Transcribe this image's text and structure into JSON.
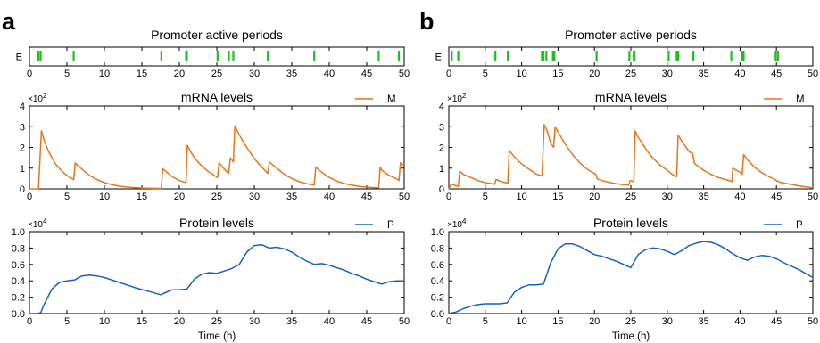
{
  "panels": [
    {
      "letter": "a"
    },
    {
      "letter": "b"
    }
  ],
  "chart_data": [
    {
      "panel": "a",
      "type": "line",
      "x_axis": {
        "label": "Time (h)",
        "lim": [
          0,
          50
        ],
        "ticks": [
          "0",
          "5",
          "10",
          "15",
          "20",
          "25",
          "30",
          "35",
          "40",
          "45",
          "50"
        ]
      },
      "subplots": [
        {
          "kind": "events",
          "title": "Promoter active periods",
          "ylabel": "E",
          "color": "#1fbf1f",
          "events": [
            1.2,
            1.5,
            5.9,
            17.6,
            20.9,
            21.0,
            25.1,
            26.6,
            27.2,
            31.8,
            38.0,
            46.6,
            49.3
          ]
        },
        {
          "kind": "line",
          "title": "mRNA levels",
          "series_label": "M",
          "color": "#e8751a",
          "ylim": [
            0,
            4
          ],
          "yticks": [
            "0",
            "1",
            "2",
            "3",
            "4"
          ],
          "scale_base": "×10",
          "scale_exp": "2",
          "x": [
            0,
            1.2,
            1.6,
            2,
            2.5,
            3,
            3.5,
            4,
            4.5,
            5,
            5.5,
            5.9,
            6.1,
            7,
            8,
            9,
            10,
            11,
            12,
            13,
            14,
            15,
            16,
            17,
            17.5,
            17.6,
            17.8,
            18,
            19,
            20,
            20.9,
            21.05,
            21.5,
            22,
            23,
            24,
            25.1,
            25.3,
            26,
            26.6,
            26.8,
            27.2,
            27.4,
            28,
            29,
            30,
            31,
            31.8,
            32,
            33,
            34,
            35,
            36,
            37,
            38,
            38.2,
            39,
            40,
            41,
            42,
            43,
            44,
            45,
            46,
            46.6,
            46.8,
            47,
            48,
            49,
            49.3,
            49.5,
            50
          ],
          "values": [
            0,
            0,
            2.8,
            2.3,
            1.85,
            1.5,
            1.2,
            0.98,
            0.8,
            0.65,
            0.53,
            0.45,
            1.25,
            0.95,
            0.65,
            0.45,
            0.3,
            0.2,
            0.13,
            0.09,
            0.06,
            0.04,
            0.03,
            0.02,
            0.02,
            0.02,
            0.98,
            0.9,
            0.6,
            0.4,
            0.3,
            2.1,
            1.8,
            1.5,
            1.1,
            0.8,
            0.55,
            1.25,
            0.95,
            0.75,
            1.5,
            1.3,
            3.05,
            2.6,
            2.0,
            1.45,
            1.05,
            0.75,
            1.3,
            1.0,
            0.7,
            0.5,
            0.35,
            0.25,
            0.18,
            1.05,
            0.8,
            0.55,
            0.38,
            0.26,
            0.18,
            0.12,
            0.08,
            0.06,
            0.05,
            1.05,
            0.9,
            0.65,
            0.48,
            0.4,
            1.25,
            1.1
          ]
        },
        {
          "kind": "line",
          "title": "Protein levels",
          "series_label": "P",
          "color": "#1860c4",
          "ylim": [
            0,
            1.0
          ],
          "yticks": [
            "0.0",
            "0.2",
            "0.4",
            "0.6",
            "0.8",
            "1.0"
          ],
          "scale_base": "×10",
          "scale_exp": "4",
          "x": [
            0,
            1,
            1.5,
            2,
            3,
            4,
            5,
            6,
            7,
            8,
            9,
            10,
            12,
            14,
            16,
            17.5,
            18,
            19,
            20,
            21,
            22,
            23,
            24,
            25,
            26,
            27,
            28,
            29,
            30,
            31,
            32,
            33,
            34,
            35,
            36,
            37,
            38,
            39,
            40,
            41,
            42,
            43,
            44,
            45,
            46,
            47,
            48,
            49,
            50
          ],
          "values": [
            0,
            0,
            0.01,
            0.12,
            0.3,
            0.38,
            0.4,
            0.41,
            0.46,
            0.47,
            0.46,
            0.44,
            0.38,
            0.32,
            0.27,
            0.23,
            0.25,
            0.29,
            0.29,
            0.3,
            0.42,
            0.48,
            0.5,
            0.49,
            0.52,
            0.55,
            0.6,
            0.75,
            0.83,
            0.84,
            0.8,
            0.81,
            0.79,
            0.75,
            0.69,
            0.64,
            0.6,
            0.61,
            0.59,
            0.56,
            0.53,
            0.49,
            0.46,
            0.42,
            0.39,
            0.36,
            0.39,
            0.4,
            0.4
          ]
        }
      ]
    },
    {
      "panel": "b",
      "type": "line",
      "x_axis": {
        "label": "Time (h)",
        "lim": [
          0,
          50
        ],
        "ticks": [
          "0",
          "5",
          "10",
          "15",
          "20",
          "25",
          "30",
          "35",
          "40",
          "45",
          "50"
        ]
      },
      "subplots": [
        {
          "kind": "events",
          "title": "Promoter active periods",
          "ylabel": "E",
          "color": "#1fbf1f",
          "events": [
            0.4,
            1.3,
            6.4,
            8.1,
            12.8,
            13.0,
            13.4,
            14.3,
            14.5,
            20.3,
            24.8,
            25.4,
            25.5,
            30.2,
            31.3,
            31.5,
            33.6,
            38.8,
            40.3,
            40.5,
            44.9,
            45.2
          ]
        },
        {
          "kind": "line",
          "title": "mRNA levels",
          "series_label": "M",
          "color": "#e8751a",
          "ylim": [
            0,
            4
          ],
          "yticks": [
            "0",
            "1",
            "2",
            "3",
            "4"
          ],
          "scale_base": "×10",
          "scale_exp": "2",
          "x": [
            0,
            0.3,
            0.5,
            1,
            1.3,
            1.5,
            2,
            3,
            4,
            5,
            6,
            6.3,
            6.5,
            7,
            7.8,
            8.1,
            8.3,
            9,
            10,
            11,
            12,
            12.8,
            13.1,
            13.5,
            14,
            14.4,
            14.6,
            15,
            16,
            17,
            18,
            19,
            20,
            20.2,
            20.4,
            21,
            22,
            23,
            24,
            24.7,
            24.9,
            25.4,
            25.6,
            26,
            27,
            28,
            29,
            30,
            30.2,
            30.4,
            31,
            31.3,
            31.5,
            32,
            33,
            33.5,
            33.7,
            34,
            35,
            36,
            37,
            38,
            38.7,
            38.9,
            39,
            40,
            40.3,
            40.5,
            41,
            42,
            43,
            44,
            44.8,
            45,
            45.2,
            45.5,
            46,
            47,
            48,
            49,
            50
          ],
          "values": [
            0,
            0.2,
            0.2,
            0.15,
            0.12,
            0.85,
            0.7,
            0.55,
            0.4,
            0.3,
            0.25,
            0.22,
            0.45,
            0.38,
            0.3,
            0.28,
            1.85,
            1.55,
            1.2,
            0.95,
            0.72,
            0.62,
            3.1,
            2.8,
            2.2,
            2.0,
            3.0,
            2.75,
            2.15,
            1.65,
            1.25,
            0.95,
            0.75,
            0.7,
            0.48,
            0.4,
            0.32,
            0.25,
            0.2,
            0.18,
            0.4,
            0.35,
            2.8,
            2.5,
            1.95,
            1.5,
            1.15,
            0.9,
            0.85,
            0.78,
            0.62,
            0.6,
            2.6,
            2.3,
            1.8,
            1.7,
            1.25,
            1.15,
            0.9,
            0.7,
            0.55,
            0.45,
            0.38,
            0.35,
            1.0,
            0.8,
            0.7,
            1.65,
            1.4,
            1.05,
            0.78,
            0.58,
            0.45,
            0.4,
            0.36,
            0.32,
            0.28,
            0.22,
            0.15,
            0.1,
            0.05
          ]
        },
        {
          "kind": "line",
          "title": "Protein levels",
          "series_label": "P",
          "color": "#1860c4",
          "ylim": [
            0,
            1.0
          ],
          "yticks": [
            "0.0",
            "0.2",
            "0.4",
            "0.6",
            "0.8",
            "1.0"
          ],
          "scale_base": "×10",
          "scale_exp": "4",
          "x": [
            0,
            1,
            2,
            3,
            4,
            5,
            6,
            7,
            8,
            9,
            10,
            11,
            12,
            13,
            14,
            15,
            16,
            17,
            18,
            19,
            20,
            21,
            22,
            23,
            24,
            25,
            26,
            27,
            28,
            29,
            30,
            31,
            32,
            33,
            34,
            35,
            36,
            37,
            38,
            39,
            40,
            41,
            42,
            43,
            44,
            45,
            46,
            47,
            48,
            49,
            50
          ],
          "values": [
            0,
            0.02,
            0.06,
            0.09,
            0.11,
            0.12,
            0.12,
            0.12,
            0.13,
            0.26,
            0.32,
            0.35,
            0.35,
            0.36,
            0.62,
            0.79,
            0.85,
            0.85,
            0.82,
            0.77,
            0.72,
            0.7,
            0.67,
            0.64,
            0.6,
            0.56,
            0.72,
            0.78,
            0.8,
            0.79,
            0.76,
            0.72,
            0.77,
            0.83,
            0.86,
            0.88,
            0.87,
            0.84,
            0.79,
            0.73,
            0.68,
            0.65,
            0.69,
            0.71,
            0.7,
            0.67,
            0.62,
            0.58,
            0.54,
            0.49,
            0.44
          ]
        }
      ]
    }
  ]
}
